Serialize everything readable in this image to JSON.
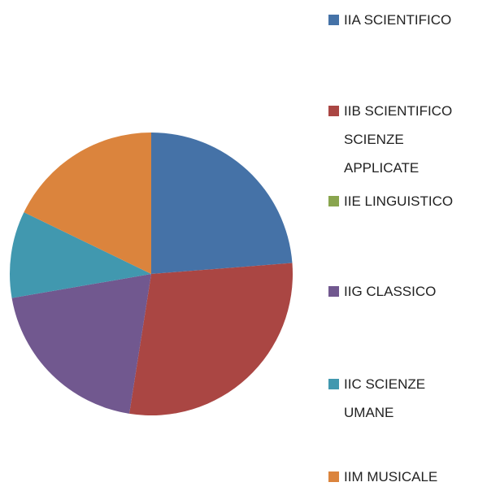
{
  "chart_data": {
    "type": "pie",
    "categories": [
      "IIA SCIENTIFICO",
      "IIB SCIENTIFICO SCIENZE APPLICATE",
      "IIE LINGUISTICO",
      "IIG CLASSICO",
      "IIC SCIENZE UMANE",
      "IIM MUSICALE"
    ],
    "values": [
      24,
      29,
      0,
      20,
      10,
      18
    ],
    "colors": [
      "#4572a7",
      "#aa4643",
      "#89a54e",
      "#71588f",
      "#4198af",
      "#db843d"
    ],
    "legend": "right"
  }
}
